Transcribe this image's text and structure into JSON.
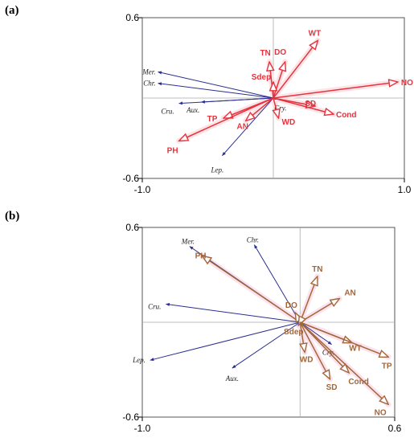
{
  "chart_data": [
    {
      "type": "biplot",
      "panel_label": "(a)",
      "xlim": [
        -1.0,
        1.0
      ],
      "ylim": [
        -0.6,
        0.6
      ],
      "x_ticks": [
        -1.0,
        1.0
      ],
      "y_ticks": [
        0.6,
        -0.6
      ],
      "x_tick_labels": [
        "-1.0",
        "1.0"
      ],
      "y_tick_labels": [
        "0.6",
        "-0.6"
      ],
      "grid": false,
      "zero_lines": true,
      "colors": {
        "species": "#2b2f8f",
        "environment": "#e5333f",
        "environment_halo": "#fde3e6"
      },
      "species": [
        {
          "label": "Mer.",
          "x": -0.88,
          "y": 0.195
        },
        {
          "label": "Chr.",
          "x": -0.88,
          "y": 0.11
        },
        {
          "label": "Cru.",
          "x": -0.72,
          "y": -0.04
        },
        {
          "label": "Aux.",
          "x": -0.55,
          "y": -0.03
        },
        {
          "label": "Lep.",
          "x": -0.39,
          "y": -0.43
        },
        {
          "label": "Cry.",
          "x": 0.02,
          "y": -0.01
        }
      ],
      "environment": [
        {
          "label": "NO",
          "x": 0.95,
          "y": 0.12
        },
        {
          "label": "WT",
          "x": 0.34,
          "y": 0.43
        },
        {
          "label": "DO",
          "x": 0.09,
          "y": 0.27
        },
        {
          "label": "TN",
          "x": -0.03,
          "y": 0.27
        },
        {
          "label": "Sdep",
          "x": 0.0,
          "y": 0.12
        },
        {
          "label": "SD",
          "x": 0.32,
          "y": -0.06
        },
        {
          "label": "Cond",
          "x": 0.46,
          "y": -0.12
        },
        {
          "label": "WD",
          "x": 0.04,
          "y": -0.15
        },
        {
          "label": "AN",
          "x": -0.21,
          "y": -0.17
        },
        {
          "label": "TP",
          "x": -0.38,
          "y": -0.15
        },
        {
          "label": "PH",
          "x": -0.72,
          "y": -0.32
        }
      ]
    },
    {
      "type": "biplot",
      "panel_label": "(b)",
      "xlim": [
        -1.0,
        0.6
      ],
      "ylim": [
        -0.6,
        0.6
      ],
      "x_ticks": [
        -1.0,
        0.6
      ],
      "y_ticks": [
        0.6,
        -0.6
      ],
      "x_tick_labels": [
        "-1.0",
        "0.6"
      ],
      "y_tick_labels": [
        "0.6",
        "-0.6"
      ],
      "grid": false,
      "zero_lines": true,
      "colors": {
        "species": "#2b2f8f",
        "environment": "#a3663a",
        "environment_halo": "#fbe3ee"
      },
      "species": [
        {
          "label": "Mer.",
          "x": -0.7,
          "y": 0.48
        },
        {
          "label": "Chr.",
          "x": -0.29,
          "y": 0.49
        },
        {
          "label": "Cru.",
          "x": -0.85,
          "y": 0.115
        },
        {
          "label": "Lep.",
          "x": -0.95,
          "y": -0.24
        },
        {
          "label": "Aux.",
          "x": -0.43,
          "y": -0.29
        },
        {
          "label": "Cry.",
          "x": 0.2,
          "y": -0.14
        }
      ],
      "environment": [
        {
          "label": "PH",
          "x": -0.62,
          "y": 0.42
        },
        {
          "label": "TN",
          "x": 0.11,
          "y": 0.29
        },
        {
          "label": "AN",
          "x": 0.25,
          "y": 0.15
        },
        {
          "label": "DO",
          "x": -0.03,
          "y": 0.06
        },
        {
          "label": "Sdep",
          "x": -0.01,
          "y": -0.02
        },
        {
          "label": "WD",
          "x": 0.03,
          "y": -0.19
        },
        {
          "label": "WT",
          "x": 0.33,
          "y": -0.13
        },
        {
          "label": "TP",
          "x": 0.56,
          "y": -0.22
        },
        {
          "label": "SD",
          "x": 0.19,
          "y": -0.36
        },
        {
          "label": "Cond",
          "x": 0.31,
          "y": -0.32
        },
        {
          "label": "NO",
          "x": 0.56,
          "y": -0.52
        }
      ]
    }
  ]
}
